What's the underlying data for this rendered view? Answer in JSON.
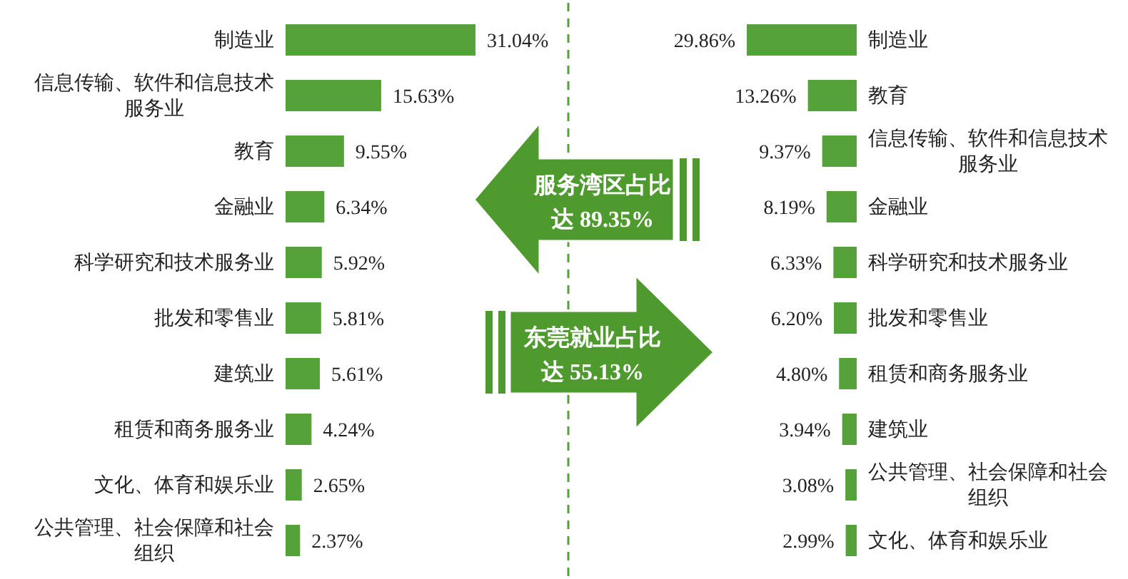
{
  "chart_data": [
    {
      "type": "bar",
      "orientation": "horizontal",
      "color": "#56a23a",
      "categories": [
        "制造业",
        "信息传输、软件和信息技术服务业",
        "教育",
        "金融业",
        "科学研究和技术服务业",
        "批发和零售业",
        "建筑业",
        "租赁和商务服务业",
        "文化、体育和娱乐业",
        "公共管理、社会保障和社会组织"
      ],
      "values": [
        31.04,
        15.63,
        9.55,
        6.34,
        5.92,
        5.81,
        5.61,
        4.24,
        2.65,
        2.37
      ],
      "value_labels": [
        "31.04%",
        "15.63%",
        "9.55%",
        "6.34%",
        "5.92%",
        "5.81%",
        "5.61%",
        "4.24%",
        "2.65%",
        "2.37%"
      ],
      "annotations": [
        "服务湾区占比达 89.35%"
      ]
    },
    {
      "type": "bar",
      "orientation": "horizontal",
      "color": "#56a23a",
      "categories": [
        "制造业",
        "教育",
        "信息传输、软件和信息技术服务业",
        "金融业",
        "科学研究和技术服务业",
        "批发和零售业",
        "租赁和商务服务业",
        "建筑业",
        "公共管理、社会保障和社会组织",
        "文化、体育和娱乐业"
      ],
      "values": [
        29.86,
        13.26,
        9.37,
        8.19,
        6.33,
        6.2,
        4.8,
        3.94,
        3.08,
        2.99
      ],
      "value_labels": [
        "29.86%",
        "13.26%",
        "9.37%",
        "8.19%",
        "6.33%",
        "6.20%",
        "4.80%",
        "3.94%",
        "3.08%",
        "2.99%"
      ],
      "annotations": [
        "东莞就业占比达 55.13%"
      ]
    }
  ]
}
